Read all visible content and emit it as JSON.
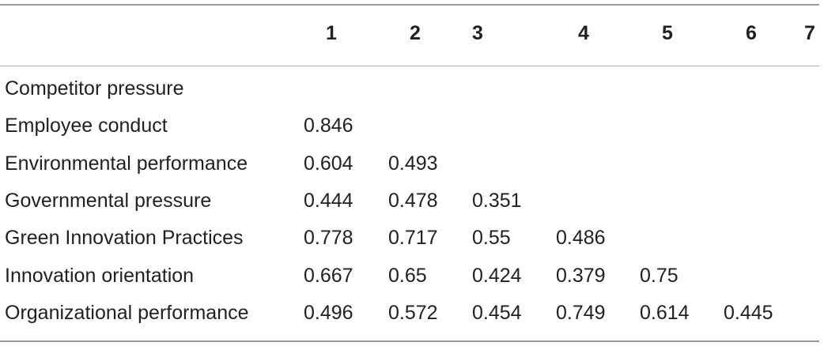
{
  "table": {
    "columns": [
      "",
      "1",
      "2",
      "3",
      "4",
      "5",
      "6",
      "7"
    ],
    "rows": [
      {
        "label": "Competitor pressure",
        "values": []
      },
      {
        "label": "Employee conduct",
        "values": [
          "0.846"
        ]
      },
      {
        "label": "Environmental performance",
        "values": [
          "0.604",
          "0.493"
        ]
      },
      {
        "label": "Governmental pressure",
        "values": [
          "0.444",
          "0.478",
          "0.351"
        ]
      },
      {
        "label": "Green Innovation Practices",
        "values": [
          "0.778",
          "0.717",
          "0.55",
          "0.486"
        ]
      },
      {
        "label": "Innovation orientation",
        "values": [
          "0.667",
          "0.65",
          "0.424",
          "0.379",
          "0.75"
        ]
      },
      {
        "label": "Organizational performance",
        "values": [
          "0.496",
          "0.572",
          "0.454",
          "0.749",
          "0.614",
          "0.445"
        ]
      }
    ]
  }
}
